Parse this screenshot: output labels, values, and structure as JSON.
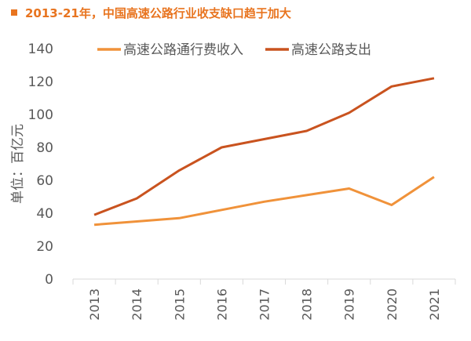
{
  "title": "2013-21年，中国高速公路行业收支缺口趋于加大",
  "chart_data": {
    "type": "line",
    "title": "2013-21年，中国高速公路行业收支缺口趋于加大",
    "xlabel": "",
    "ylabel": "单位：百亿元",
    "categories": [
      "2013",
      "2014",
      "2015",
      "2016",
      "2017",
      "2018",
      "2019",
      "2020",
      "2021"
    ],
    "ylim": [
      0,
      140
    ],
    "yticks": [
      0,
      20,
      40,
      60,
      80,
      100,
      120,
      140
    ],
    "grid": false,
    "legend": "top",
    "series": [
      {
        "name": "高速公路通行费收入",
        "color": "#f0923a",
        "values": [
          33,
          35,
          37,
          42,
          47,
          51,
          55,
          45,
          62
        ]
      },
      {
        "name": "高速公路支出",
        "color": "#c9531f",
        "values": [
          39,
          49,
          66,
          80,
          85,
          90,
          101,
          117,
          122
        ]
      }
    ]
  }
}
